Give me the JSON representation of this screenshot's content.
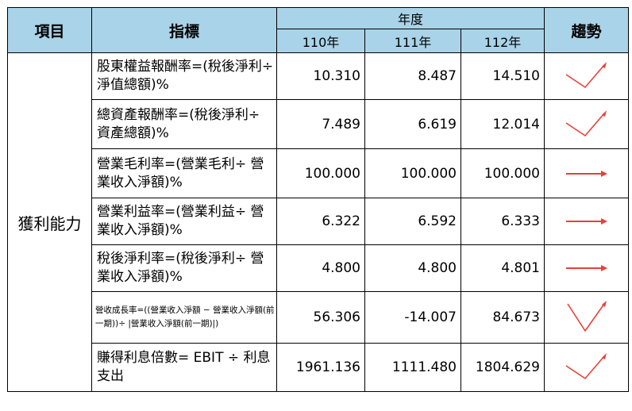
{
  "header": {
    "category": "項目",
    "indicator": "指標",
    "year_group": "年度",
    "years": [
      "110年",
      "111年",
      "112年"
    ],
    "trend": "趨勢"
  },
  "category": "獲利能力",
  "colors": {
    "header_bg": "#a9d3e8",
    "trend_arrow": "#e8403a"
  },
  "rows": [
    {
      "indicator": "股東權益報酬率=(稅後淨利÷ 淨值總額)%",
      "values": [
        "10.310",
        "8.487",
        "14.510"
      ],
      "trend_icon": "check-arrow-icon"
    },
    {
      "indicator": "總資產報酬率=(稅後淨利÷ 資產總額)%",
      "values": [
        "7.489",
        "6.619",
        "12.014"
      ],
      "trend_icon": "check-arrow-icon"
    },
    {
      "indicator": "營業毛利率=(營業毛利÷ 營業收入淨額)%",
      "values": [
        "100.000",
        "100.000",
        "100.000"
      ],
      "trend_icon": "right-arrow-icon"
    },
    {
      "indicator": "營業利益率=(營業利益÷ 營業收入淨額)%",
      "values": [
        "6.322",
        "6.592",
        "6.333"
      ],
      "trend_icon": "right-arrow-icon"
    },
    {
      "indicator": "稅後淨利率=(稅後淨利÷ 營業收入淨額)%",
      "values": [
        "4.800",
        "4.800",
        "4.801"
      ],
      "trend_icon": "right-arrow-icon"
    },
    {
      "indicator": "營收成長率=((營業收入淨額 − 營業收入淨額(前一期))÷ |營業收入淨額(前一期)|)",
      "values": [
        "56.306",
        "-14.007",
        "84.673"
      ],
      "trend_icon": "v-arrow-icon"
    },
    {
      "indicator": "賺得利息倍數= EBIT ÷ 利息支出",
      "values": [
        "1961.136",
        "1111.480",
        "1804.629"
      ],
      "trend_icon": "check-arrow-icon"
    }
  ]
}
